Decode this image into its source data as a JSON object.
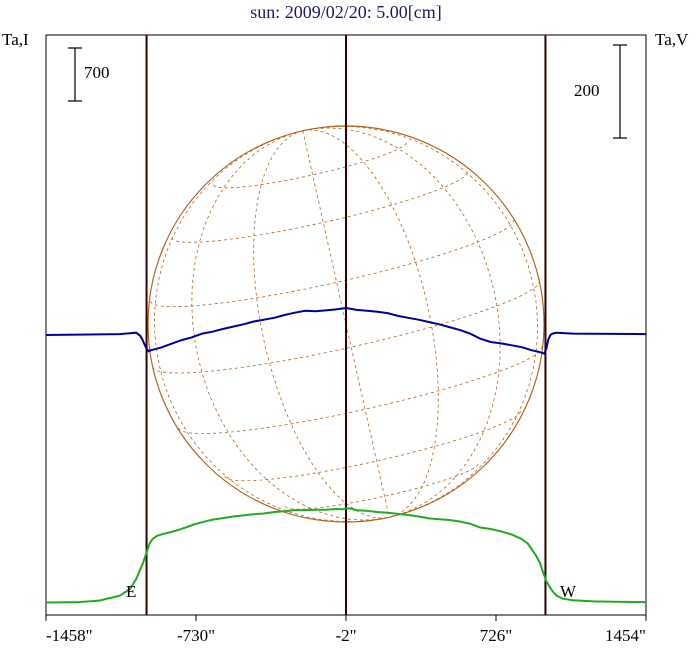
{
  "chart_data": {
    "type": "line",
    "title": "sun: 2009/02/20: 5.00[cm]",
    "left_axis_label": "Ta,I",
    "right_axis_label": "Ta,V",
    "left_scale_label": "700",
    "right_scale_label": "200",
    "x_tick_labels": [
      "-1458\"",
      "-730\"",
      "-2\"",
      "726\"",
      "1454\""
    ],
    "x_ticks": [
      -1458,
      -730,
      -2,
      726,
      1454
    ],
    "xlim": [
      -1458,
      1454
    ],
    "limb_labels": {
      "east": "E",
      "west": "W"
    },
    "vertical_markers": [
      -970,
      -2,
      966
    ],
    "series": [
      {
        "color": "#22aa22",
        "x": [
          -1458,
          -1300,
          -1200,
          -1100,
          -1050,
          -1020,
          -1000,
          -985,
          -975,
          -965,
          -955,
          -940,
          -920,
          -890,
          -860,
          -820,
          -780,
          -740,
          -700,
          -650,
          -600,
          -550,
          -500,
          -450,
          -400,
          -350,
          -300,
          -250,
          -200,
          -150,
          -100,
          -50,
          -20,
          0,
          20,
          50,
          100,
          150,
          200,
          250,
          300,
          350,
          400,
          450,
          500,
          550,
          600,
          650,
          700,
          750,
          800,
          850,
          880,
          900,
          920,
          940,
          950,
          960,
          970,
          985,
          1000,
          1020,
          1050,
          1100,
          1200,
          1300,
          1454
        ],
        "y": [
          20,
          25,
          45,
          110,
          200,
          330,
          460,
          560,
          640,
          720,
          800,
          860,
          900,
          925,
          945,
          975,
          1010,
          1050,
          1080,
          1115,
          1135,
          1155,
          1170,
          1185,
          1195,
          1215,
          1225,
          1240,
          1240,
          1245,
          1245,
          1255,
          1250,
          1265,
          1260,
          1240,
          1230,
          1215,
          1205,
          1190,
          1175,
          1155,
          1130,
          1120,
          1110,
          1090,
          1060,
          1010,
          990,
          960,
          920,
          860,
          800,
          720,
          640,
          540,
          450,
          380,
          300,
          230,
          170,
          110,
          70,
          50,
          35,
          30,
          25
        ]
      },
      {
        "color": "#000099",
        "x": [
          -1458,
          -1100,
          -1020,
          -1000,
          -990,
          -980,
          -970,
          -960,
          -950,
          -900,
          -850,
          -800,
          -750,
          -700,
          -650,
          -600,
          -550,
          -500,
          -450,
          -400,
          -350,
          -300,
          -250,
          -200,
          -150,
          -100,
          -50,
          0,
          50,
          100,
          150,
          200,
          250,
          300,
          350,
          400,
          450,
          500,
          550,
          600,
          650,
          700,
          750,
          800,
          850,
          900,
          940,
          960,
          970,
          980,
          990,
          1000,
          1020,
          1100,
          1454
        ],
        "y": [
          0,
          2,
          5,
          -2,
          -10,
          -20,
          -29,
          -35,
          -33,
          -27,
          -19,
          -11,
          -5,
          3,
          7,
          13,
          18,
          23,
          29,
          33,
          37,
          43,
          48,
          52,
          51,
          53,
          55,
          58,
          54,
          52,
          50,
          47,
          41,
          37,
          33,
          28,
          23,
          17,
          11,
          3,
          -8,
          -15,
          -18,
          -22,
          -26,
          -33,
          -37,
          -40,
          -30,
          -10,
          0,
          3,
          5,
          3,
          2
        ]
      }
    ]
  }
}
